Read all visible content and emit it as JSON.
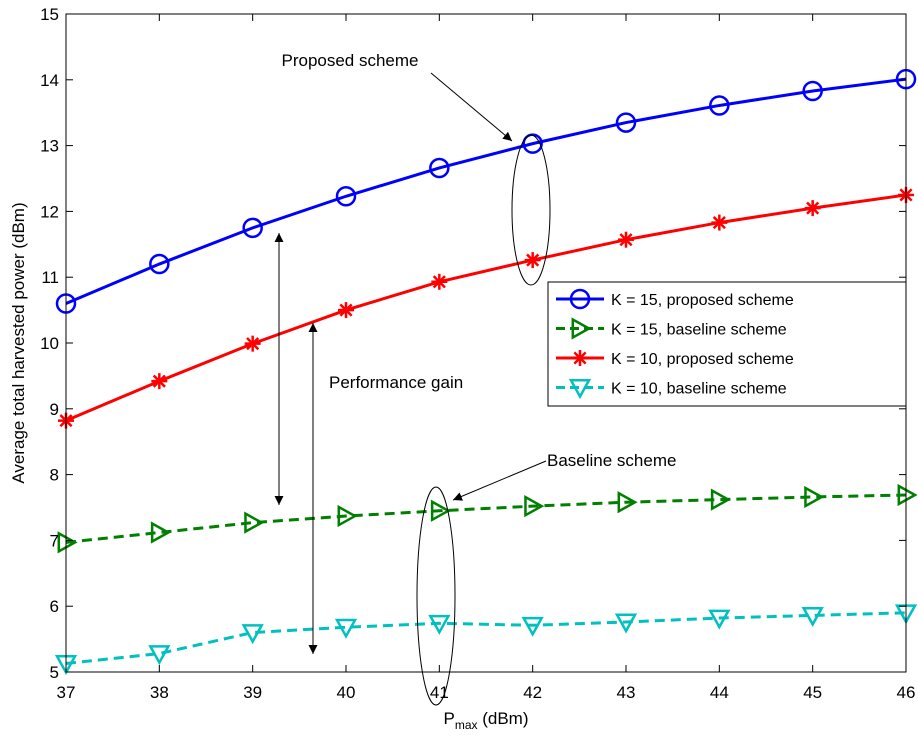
{
  "chart_data": {
    "type": "line",
    "xlabel_main": "P",
    "xlabel_sub": "max",
    "xlabel_unit": " (dBm)",
    "ylabel": "Average total harvested power (dBm)",
    "xlim": [
      37,
      46
    ],
    "ylim": [
      5,
      15
    ],
    "xticks": [
      "37",
      "38",
      "39",
      "40",
      "41",
      "42",
      "43",
      "44",
      "45",
      "46"
    ],
    "yticks": [
      "5",
      "6",
      "7",
      "8",
      "9",
      "10",
      "11",
      "12",
      "13",
      "14",
      "15"
    ],
    "x": [
      37,
      38,
      39,
      40,
      41,
      42,
      43,
      44,
      45,
      46
    ],
    "grid": false,
    "legend_position": "right",
    "series": [
      {
        "name": "K = 15, proposed scheme",
        "color": "#0000ff",
        "dash": "solid",
        "marker": "circle",
        "values": [
          10.6,
          11.2,
          11.75,
          12.23,
          12.66,
          13.03,
          13.35,
          13.61,
          13.83,
          14.01
        ]
      },
      {
        "name": "K = 15, baseline scheme",
        "color": "#008000",
        "dash": "dashed",
        "marker": "triangle-right",
        "values": [
          6.97,
          7.12,
          7.27,
          7.37,
          7.45,
          7.52,
          7.58,
          7.62,
          7.66,
          7.69
        ]
      },
      {
        "name": "K = 10, proposed scheme",
        "color": "#ff0000",
        "dash": "solid",
        "marker": "asterisk",
        "values": [
          8.82,
          9.42,
          9.99,
          10.5,
          10.93,
          11.26,
          11.57,
          11.83,
          12.05,
          12.25
        ]
      },
      {
        "name": "K = 10, baseline scheme",
        "color": "#00c0c0",
        "dash": "dashed",
        "marker": "triangle-down",
        "values": [
          5.13,
          5.28,
          5.6,
          5.68,
          5.74,
          5.71,
          5.76,
          5.82,
          5.86,
          5.9
        ]
      }
    ],
    "annotations": {
      "proposed": "Proposed scheme",
      "baseline": "Baseline scheme",
      "gain": "Performance gain"
    }
  }
}
